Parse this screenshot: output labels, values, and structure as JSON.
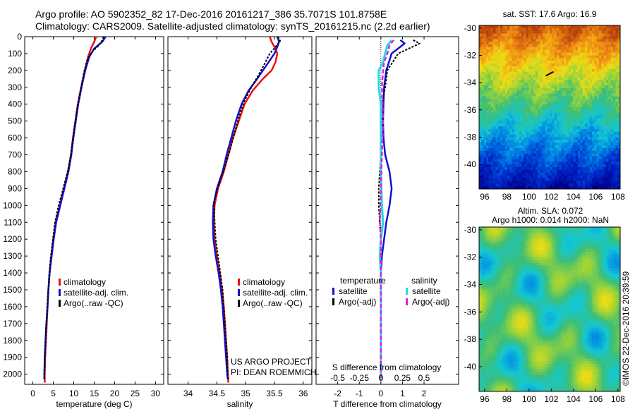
{
  "header": {
    "line1": "Argo profile: AO 5902352_82 17-Dec-2016 20161217_386 35.7071S 101.8758E",
    "line2": "Climatology: CARS2009. Satellite-adjusted climatology: synTS_20161215.nc (2.2d earlier)"
  },
  "colors": {
    "climatology": "#ee1111",
    "satellite": "#1111cc",
    "argo": "#000000",
    "sal_satellite": "#22dddd",
    "sal_argo": "#dd22dd"
  },
  "credit": {
    "project": "US ARGO PROJECT",
    "pi": "PI: DEAN ROEMMICH",
    "imos": "©IMOS 22-Dec-2016 20:39:59"
  },
  "chart_data": [
    {
      "id": "temperature",
      "type": "line",
      "xlabel": "temperature (deg C)",
      "xlim": [
        -2,
        32
      ],
      "xticks": [
        0,
        5,
        10,
        15,
        20,
        25,
        30
      ],
      "ylim": [
        0,
        2060
      ],
      "yticks": [
        0,
        100,
        200,
        300,
        400,
        500,
        600,
        700,
        800,
        900,
        1000,
        1100,
        1200,
        1300,
        1400,
        1500,
        1600,
        1700,
        1800,
        1900,
        2000
      ],
      "legend": [
        "climatology",
        "satellite-adj. clim.",
        "Argo(..raw -QC)"
      ],
      "series": [
        {
          "name": "climatology",
          "style": "clim",
          "points": [
            [
              15.5,
              0
            ],
            [
              15.0,
              30
            ],
            [
              14.2,
              70
            ],
            [
              13.5,
              120
            ],
            [
              12.7,
              200
            ],
            [
              11.8,
              300
            ],
            [
              11.0,
              400
            ],
            [
              10.4,
              500
            ],
            [
              9.8,
              600
            ],
            [
              9.3,
              700
            ],
            [
              8.6,
              800
            ],
            [
              7.6,
              900
            ],
            [
              6.6,
              1000
            ],
            [
              5.6,
              1100
            ],
            [
              5.0,
              1200
            ],
            [
              4.5,
              1300
            ],
            [
              4.1,
              1400
            ],
            [
              3.8,
              1500
            ],
            [
              3.6,
              1600
            ],
            [
              3.4,
              1700
            ],
            [
              3.2,
              1800
            ],
            [
              3.0,
              1900
            ],
            [
              2.9,
              2000
            ],
            [
              2.9,
              2050
            ]
          ]
        },
        {
          "name": "satellite-adj. clim.",
          "style": "sat",
          "points": [
            [
              17.8,
              0
            ],
            [
              17.0,
              30
            ],
            [
              15.0,
              70
            ],
            [
              13.8,
              120
            ],
            [
              12.8,
              200
            ],
            [
              11.9,
              300
            ],
            [
              11.1,
              400
            ],
            [
              10.5,
              500
            ],
            [
              9.9,
              600
            ],
            [
              9.4,
              700
            ],
            [
              8.7,
              800
            ],
            [
              7.7,
              900
            ],
            [
              6.7,
              1000
            ],
            [
              5.7,
              1100
            ],
            [
              5.1,
              1200
            ],
            [
              4.6,
              1300
            ],
            [
              4.1,
              1400
            ],
            [
              3.8,
              1500
            ],
            [
              3.6,
              1600
            ],
            [
              3.3,
              1700
            ],
            [
              3.1,
              1800
            ],
            [
              2.9,
              1900
            ],
            [
              2.8,
              2000
            ],
            [
              2.8,
              2030
            ]
          ]
        },
        {
          "name": "Argo(..raw -QC)",
          "style": "argo",
          "points": [
            [
              17.3,
              0
            ],
            [
              17.0,
              20
            ],
            [
              16.2,
              50
            ],
            [
              14.5,
              90
            ],
            [
              13.4,
              130
            ],
            [
              12.6,
              200
            ],
            [
              11.8,
              300
            ],
            [
              11.0,
              400
            ],
            [
              10.4,
              500
            ],
            [
              9.8,
              600
            ],
            [
              9.3,
              700
            ],
            [
              8.5,
              800
            ],
            [
              7.4,
              900
            ],
            [
              6.3,
              1000
            ],
            [
              5.4,
              1100
            ],
            [
              4.9,
              1200
            ],
            [
              4.4,
              1300
            ],
            [
              4.0,
              1400
            ],
            [
              3.8,
              1500
            ],
            [
              3.5,
              1600
            ],
            [
              3.3,
              1700
            ],
            [
              3.1,
              1800
            ],
            [
              2.9,
              1900
            ],
            [
              2.8,
              2000
            ],
            [
              2.8,
              2030
            ]
          ]
        }
      ]
    },
    {
      "id": "salinity",
      "type": "line",
      "xlabel": "salinity",
      "xlim": [
        33.65,
        36.15
      ],
      "xticks": [
        34,
        34.5,
        35,
        35.5,
        36
      ],
      "ylim": [
        0,
        2060
      ],
      "legend": [
        "climatology",
        "satellite-adj. clim.",
        "Argo(..raw -QC)"
      ],
      "series": [
        {
          "name": "climatology",
          "style": "clim",
          "points": [
            [
              35.42,
              0
            ],
            [
              35.45,
              30
            ],
            [
              35.5,
              60
            ],
            [
              35.55,
              100
            ],
            [
              35.52,
              150
            ],
            [
              35.45,
              200
            ],
            [
              35.3,
              250
            ],
            [
              35.12,
              320
            ],
            [
              34.98,
              400
            ],
            [
              34.88,
              500
            ],
            [
              34.78,
              600
            ],
            [
              34.7,
              700
            ],
            [
              34.62,
              800
            ],
            [
              34.52,
              900
            ],
            [
              34.46,
              1000
            ],
            [
              34.45,
              1100
            ],
            [
              34.46,
              1200
            ],
            [
              34.5,
              1300
            ],
            [
              34.55,
              1400
            ],
            [
              34.59,
              1500
            ],
            [
              34.62,
              1600
            ],
            [
              34.64,
              1700
            ],
            [
              34.66,
              1800
            ],
            [
              34.68,
              1900
            ],
            [
              34.69,
              2000
            ],
            [
              34.7,
              2050
            ]
          ]
        },
        {
          "name": "satellite-adj. clim.",
          "style": "sat",
          "points": [
            [
              35.55,
              0
            ],
            [
              35.58,
              30
            ],
            [
              35.55,
              60
            ],
            [
              35.5,
              100
            ],
            [
              35.4,
              150
            ],
            [
              35.3,
              200
            ],
            [
              35.2,
              250
            ],
            [
              35.05,
              320
            ],
            [
              34.93,
              400
            ],
            [
              34.83,
              500
            ],
            [
              34.75,
              600
            ],
            [
              34.67,
              700
            ],
            [
              34.6,
              800
            ],
            [
              34.5,
              900
            ],
            [
              34.44,
              1000
            ],
            [
              34.43,
              1100
            ],
            [
              34.44,
              1200
            ],
            [
              34.48,
              1300
            ],
            [
              34.53,
              1400
            ],
            [
              34.57,
              1500
            ],
            [
              34.6,
              1600
            ],
            [
              34.62,
              1700
            ],
            [
              34.64,
              1800
            ],
            [
              34.66,
              1900
            ],
            [
              34.68,
              2000
            ],
            [
              34.69,
              2030
            ]
          ]
        },
        {
          "name": "Argo(..raw -QC)",
          "style": "argo",
          "points": [
            [
              35.56,
              0
            ],
            [
              35.6,
              25
            ],
            [
              35.52,
              60
            ],
            [
              35.42,
              100
            ],
            [
              35.33,
              160
            ],
            [
              35.22,
              230
            ],
            [
              35.1,
              300
            ],
            [
              34.98,
              380
            ],
            [
              34.88,
              480
            ],
            [
              34.8,
              580
            ],
            [
              34.72,
              680
            ],
            [
              34.63,
              780
            ],
            [
              34.53,
              880
            ],
            [
              34.45,
              980
            ],
            [
              34.46,
              1080
            ],
            [
              34.48,
              1200
            ],
            [
              34.52,
              1300
            ],
            [
              34.56,
              1400
            ],
            [
              34.6,
              1500
            ],
            [
              34.62,
              1600
            ],
            [
              34.64,
              1700
            ],
            [
              34.66,
              1800
            ],
            [
              34.68,
              1900
            ],
            [
              34.69,
              2000
            ],
            [
              34.7,
              2030
            ]
          ]
        }
      ]
    },
    {
      "id": "difference",
      "type": "line",
      "xlabel": "T difference from climatology",
      "top_label": "S difference from climatology",
      "xlim": [
        -3,
        3.6
      ],
      "xticks": [
        -2,
        -1,
        0,
        1,
        2
      ],
      "xticks_top": [
        "-0.5",
        "-0.25",
        "0",
        "0.25",
        "0.5"
      ],
      "xticks_top_pos": [
        -2,
        -1,
        0,
        1,
        2
      ],
      "ylim": [
        0,
        2060
      ],
      "legend_titles": [
        "temperature",
        "salinity"
      ],
      "legend": [
        "satellite",
        "Argo(-adj)",
        "satellite",
        "Argo(-adj)"
      ],
      "series": [
        {
          "name": "T satellite",
          "style": "sat",
          "points": [
            [
              0.9,
              20
            ],
            [
              1.1,
              40
            ],
            [
              0.5,
              100
            ],
            [
              0.25,
              200
            ],
            [
              0.15,
              300
            ],
            [
              0.12,
              400
            ],
            [
              0.1,
              500
            ],
            [
              0.12,
              600
            ],
            [
              0.2,
              700
            ],
            [
              0.4,
              800
            ],
            [
              0.5,
              900
            ],
            [
              0.4,
              1000
            ],
            [
              0.25,
              1100
            ],
            [
              0.15,
              1200
            ],
            [
              0.05,
              1300
            ],
            [
              0.0,
              1400
            ],
            [
              0.0,
              1600
            ],
            [
              0.0,
              1800
            ],
            [
              0.0,
              2000
            ],
            [
              0.0,
              2030
            ]
          ]
        },
        {
          "name": "T Argo(-adj)",
          "style": "argo",
          "points": [
            [
              1.5,
              20
            ],
            [
              1.8,
              40
            ],
            [
              0.8,
              100
            ],
            [
              0.3,
              200
            ],
            [
              0.2,
              300
            ],
            [
              0.05,
              400
            ],
            [
              0.05,
              500
            ],
            [
              0.0,
              700
            ],
            [
              -0.05,
              800
            ],
            [
              -0.1,
              900
            ],
            [
              -0.1,
              1000
            ],
            [
              -0.05,
              1100
            ],
            [
              0.0,
              1200
            ],
            [
              -0.05,
              1300
            ],
            [
              0.0,
              1400
            ],
            [
              0.0,
              1600
            ],
            [
              0.0,
              1800
            ],
            [
              0.0,
              2000
            ],
            [
              0.0,
              2030
            ]
          ]
        },
        {
          "name": "S satellite",
          "style": "ssat",
          "points": [
            [
              0.5,
              20
            ],
            [
              0.3,
              50
            ],
            [
              0.2,
              100
            ],
            [
              0.1,
              150
            ],
            [
              -0.1,
              200
            ],
            [
              -0.1,
              300
            ],
            [
              0.0,
              400
            ],
            [
              0.0,
              600
            ],
            [
              0.0,
              800
            ],
            [
              0.05,
              1000
            ],
            [
              0.1,
              1100
            ],
            [
              0.0,
              1200
            ],
            [
              -0.05,
              1300
            ],
            [
              0.0,
              1400
            ],
            [
              0.0,
              1600
            ],
            [
              0.0,
              1800
            ],
            [
              0.0,
              2000
            ],
            [
              0.0,
              2030
            ]
          ]
        },
        {
          "name": "S Argo(-adj)",
          "style": "sargo",
          "points": [
            [
              0.6,
              20
            ],
            [
              0.4,
              50
            ],
            [
              0.3,
              100
            ],
            [
              0.15,
              150
            ],
            [
              0.1,
              200
            ],
            [
              0.05,
              300
            ],
            [
              0.1,
              500
            ],
            [
              0.05,
              700
            ],
            [
              0.0,
              900
            ],
            [
              -0.05,
              1100
            ],
            [
              0.0,
              1200
            ],
            [
              0.0,
              1400
            ],
            [
              0.0,
              1600
            ],
            [
              0.0,
              1800
            ],
            [
              0.0,
              2000
            ],
            [
              0.0,
              2030
            ]
          ]
        }
      ]
    },
    {
      "id": "sst-map",
      "type": "heatmap",
      "title": "sat. SST: 17.6 Argo: 16.9",
      "xlim": [
        95.5,
        108.2
      ],
      "ylim": [
        -41.8,
        -29.8
      ],
      "xticks": [
        96,
        98,
        100,
        102,
        104,
        106,
        108
      ],
      "yticks": [
        -30,
        -32,
        -34,
        -36,
        -38,
        -40
      ]
    },
    {
      "id": "sla-map",
      "type": "heatmap",
      "title": "Altim. SLA: 0.072",
      "subtitle": "Argo h1000: 0.014 h2000: NaN",
      "xlim": [
        95.5,
        108.2
      ],
      "ylim": [
        -41.8,
        -29.8
      ],
      "xticks": [
        96,
        98,
        100,
        102,
        104,
        106,
        108
      ],
      "yticks": [
        -30,
        -32,
        -34,
        -36,
        -38,
        -40
      ]
    }
  ]
}
